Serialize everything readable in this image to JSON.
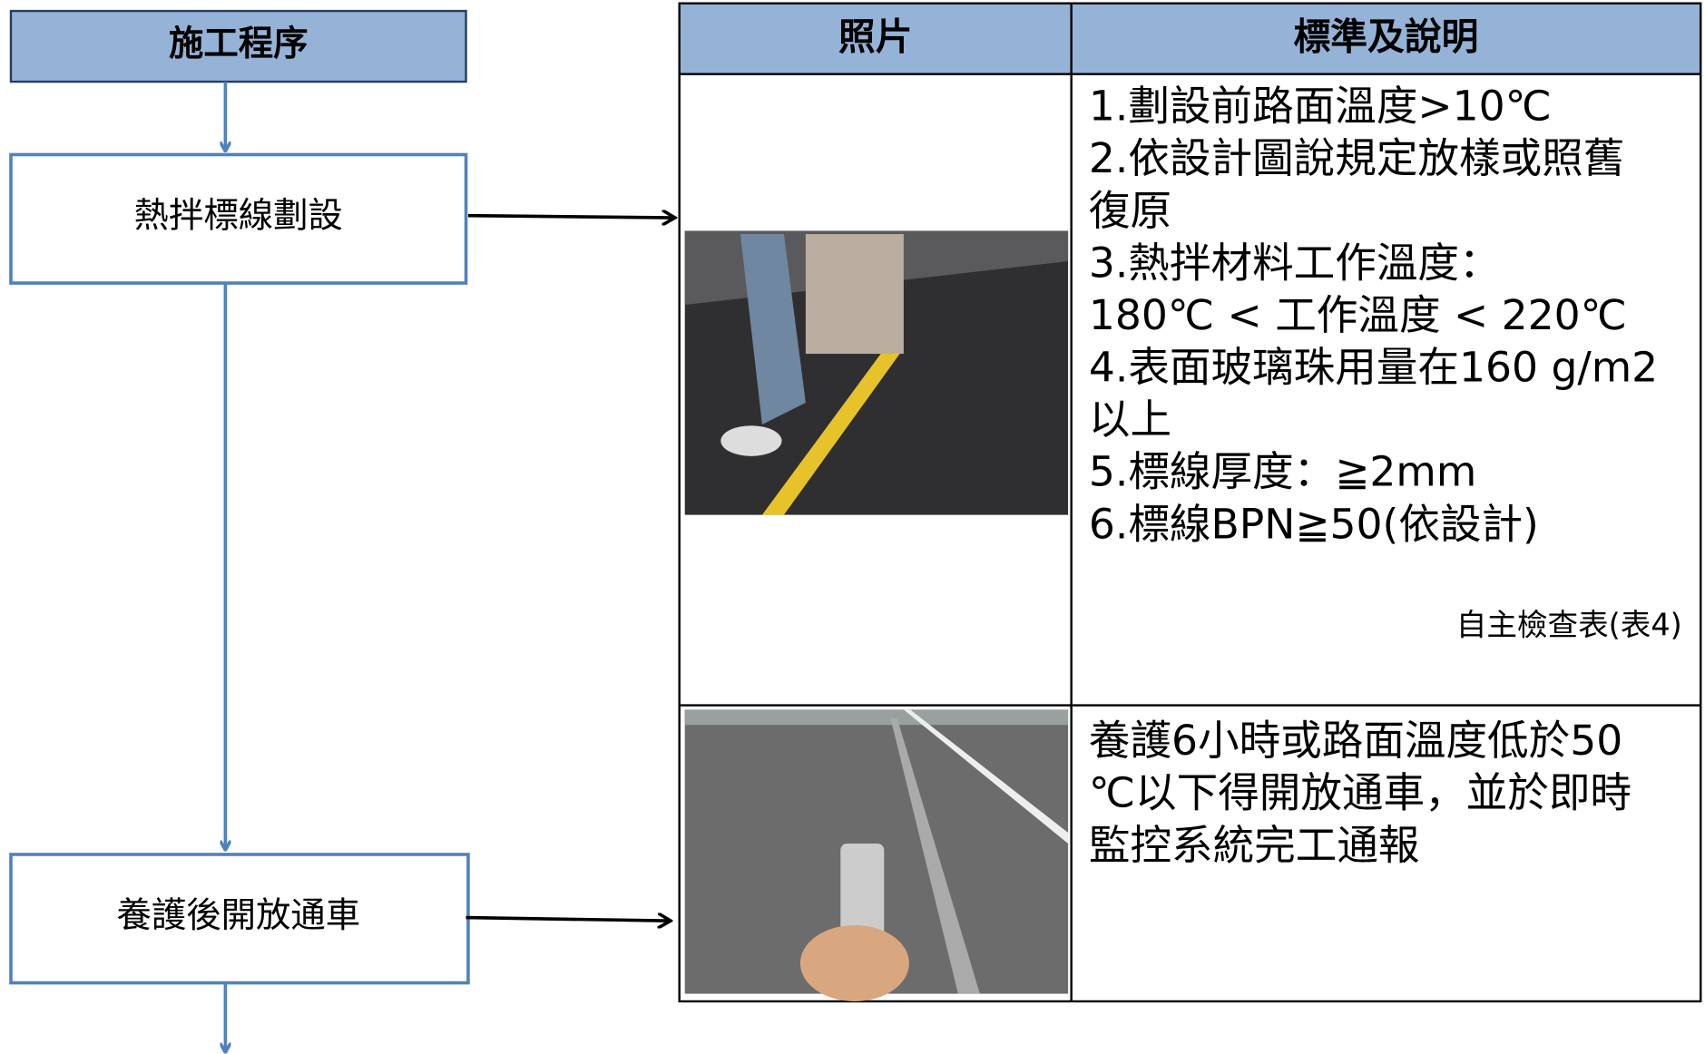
{
  "flowchart": {
    "header": "施工程序",
    "steps": [
      "熱拌標線劃設",
      "養護後開放通車"
    ]
  },
  "table": {
    "headers": [
      "照片",
      "標準及說明"
    ],
    "rows": [
      {
        "lines": [
          "1.劃設前路面溫度>10℃",
          "2.依設計圖說規定放樣或照舊",
          "復原",
          "3.熱拌材料工作溫度：",
          "180℃ < 工作溫度 < 220℃",
          "4.表面玻璃珠用量在160  g/m2",
          "以上",
          "5.標線厚度：≧2mm",
          "6.標線BPN≧50(依設計)"
        ],
        "note": "自主檢查表(表4)"
      },
      {
        "lines": [
          "養護6小時或路面溫度低於50",
          "℃以下得開放通車，並於即時",
          "監控系統完工通報"
        ]
      }
    ]
  }
}
